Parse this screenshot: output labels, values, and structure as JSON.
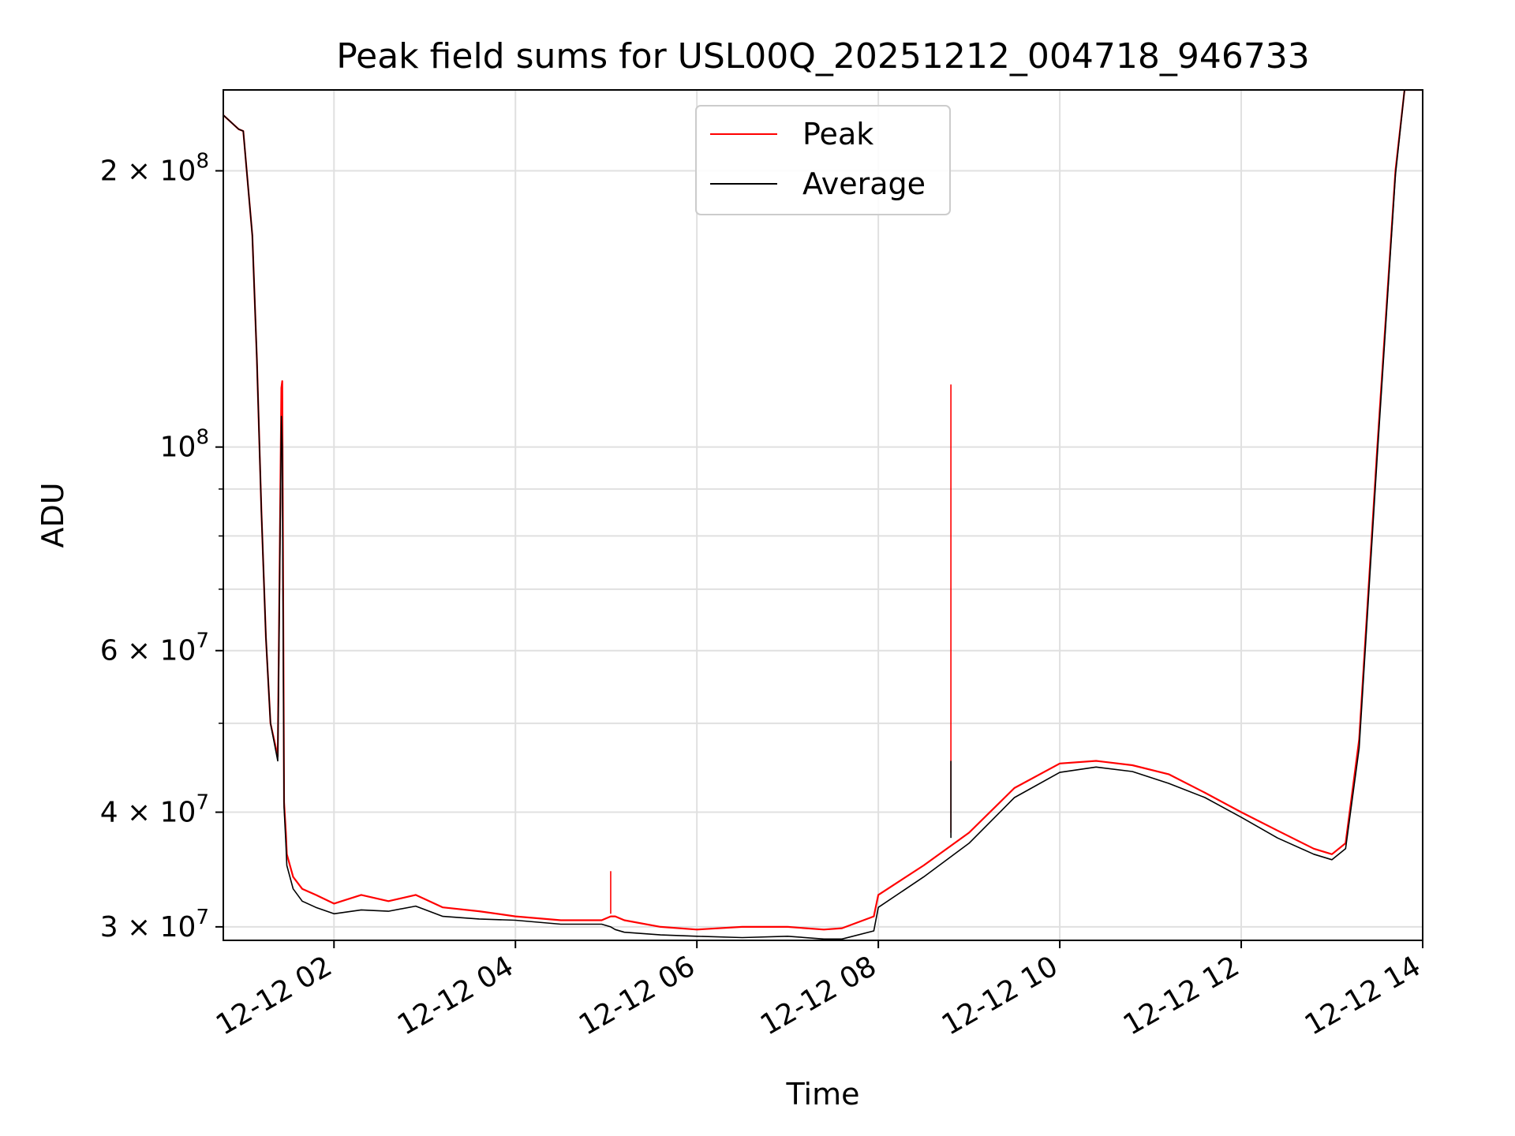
{
  "chart_data": {
    "type": "line",
    "title": "Peak field sums for USL00Q_20251212_004718_946733",
    "xlabel": "Time",
    "ylabel": "ADU",
    "yscale": "log",
    "ylim": [
      29000000,
      245000000
    ],
    "xlim_hours": [
      0.78,
      14.0
    ],
    "grid": true,
    "legend_position": "top-center",
    "x_ticks": [
      {
        "value": 2,
        "label": "12-12 02"
      },
      {
        "value": 4,
        "label": "12-12 04"
      },
      {
        "value": 6,
        "label": "12-12 06"
      },
      {
        "value": 8,
        "label": "12-12 08"
      },
      {
        "value": 10,
        "label": "12-12 10"
      },
      {
        "value": 12,
        "label": "12-12 12"
      },
      {
        "value": 14,
        "label": "12-12 14"
      }
    ],
    "y_ticks_major": [
      {
        "value": 30000000,
        "mantissa": "3",
        "exponent": "7"
      },
      {
        "value": 40000000,
        "mantissa": "4",
        "exponent": "7"
      },
      {
        "value": 60000000,
        "mantissa": "6",
        "exponent": "7"
      },
      {
        "value": 100000000,
        "mantissa": "",
        "exponent": "8"
      },
      {
        "value": 200000000,
        "mantissa": "2",
        "exponent": "8"
      }
    ],
    "y_ticks_minor": [
      50000000,
      70000000,
      80000000,
      90000000
    ],
    "series": [
      {
        "name": "Peak",
        "color": "#ff0000",
        "x_hours": [
          0.78,
          0.95,
          1.0,
          1.1,
          1.15,
          1.2,
          1.25,
          1.3,
          1.38,
          1.42,
          1.43,
          1.45,
          1.47,
          1.48,
          1.55,
          1.65,
          1.8,
          2.0,
          2.3,
          2.6,
          2.9,
          3.2,
          3.6,
          4.0,
          4.5,
          4.95,
          5.05,
          5.1,
          5.2,
          5.6,
          6.0,
          6.5,
          7.0,
          7.4,
          7.6,
          7.95,
          8.0,
          8.5,
          9.0,
          9.5,
          10.0,
          10.4,
          10.8,
          11.2,
          11.6,
          12.0,
          12.4,
          12.8,
          13.0,
          13.15,
          13.3,
          13.5,
          13.7,
          13.8,
          14.0
        ],
        "y": [
          230000000,
          222000000,
          221000000,
          170000000,
          125000000,
          85000000,
          62000000,
          50000000,
          46000000,
          116000000,
          118000000,
          41000000,
          38000000,
          36000000,
          34000000,
          33000000,
          32500000,
          31800000,
          32500000,
          32000000,
          32500000,
          31500000,
          31200000,
          30800000,
          30500000,
          30500000,
          30800000,
          30800000,
          30500000,
          30000000,
          29800000,
          30000000,
          30000000,
          29800000,
          29900000,
          30800000,
          32500000,
          35000000,
          38000000,
          42500000,
          45200000,
          45500000,
          45000000,
          44000000,
          42000000,
          40000000,
          38200000,
          36500000,
          36000000,
          37000000,
          48000000,
          100000000,
          200000000,
          245000000,
          245000000
        ]
      },
      {
        "name": "Average",
        "color": "#000000",
        "x_hours": [
          0.78,
          0.95,
          1.0,
          1.1,
          1.15,
          1.2,
          1.25,
          1.3,
          1.38,
          1.42,
          1.43,
          1.45,
          1.47,
          1.48,
          1.55,
          1.65,
          1.8,
          2.0,
          2.3,
          2.6,
          2.9,
          3.2,
          3.6,
          4.0,
          4.5,
          4.95,
          5.05,
          5.1,
          5.2,
          5.6,
          6.0,
          6.5,
          7.0,
          7.4,
          7.6,
          7.95,
          8.0,
          8.5,
          9.0,
          9.5,
          10.0,
          10.4,
          10.8,
          11.2,
          11.6,
          12.0,
          12.4,
          12.8,
          13.0,
          13.15,
          13.3,
          13.5,
          13.7,
          13.8,
          14.0
        ],
        "y": [
          230000000,
          222000000,
          221000000,
          170000000,
          125000000,
          85000000,
          62000000,
          50000000,
          45500000,
          108000000,
          100000000,
          40500000,
          37000000,
          35000000,
          33000000,
          32000000,
          31500000,
          31000000,
          31300000,
          31200000,
          31600000,
          30800000,
          30600000,
          30500000,
          30200000,
          30200000,
          30000000,
          29800000,
          29600000,
          29400000,
          29300000,
          29200000,
          29300000,
          29100000,
          29100000,
          29700000,
          31500000,
          34000000,
          37000000,
          41500000,
          44200000,
          44800000,
          44300000,
          43000000,
          41500000,
          39500000,
          37500000,
          36000000,
          35500000,
          36500000,
          47000000,
          98000000,
          198000000,
          245000000,
          245000000
        ]
      }
    ],
    "spikes": [
      {
        "series": "Peak",
        "x_hour": 5.05,
        "from": 31000000,
        "to": 34500000
      },
      {
        "series": "Peak",
        "x_hour": 8.8,
        "from": 38000000,
        "to": 117000000
      },
      {
        "series": "Average",
        "x_hour": 8.8,
        "from": 37500000,
        "to": 45500000
      }
    ]
  }
}
